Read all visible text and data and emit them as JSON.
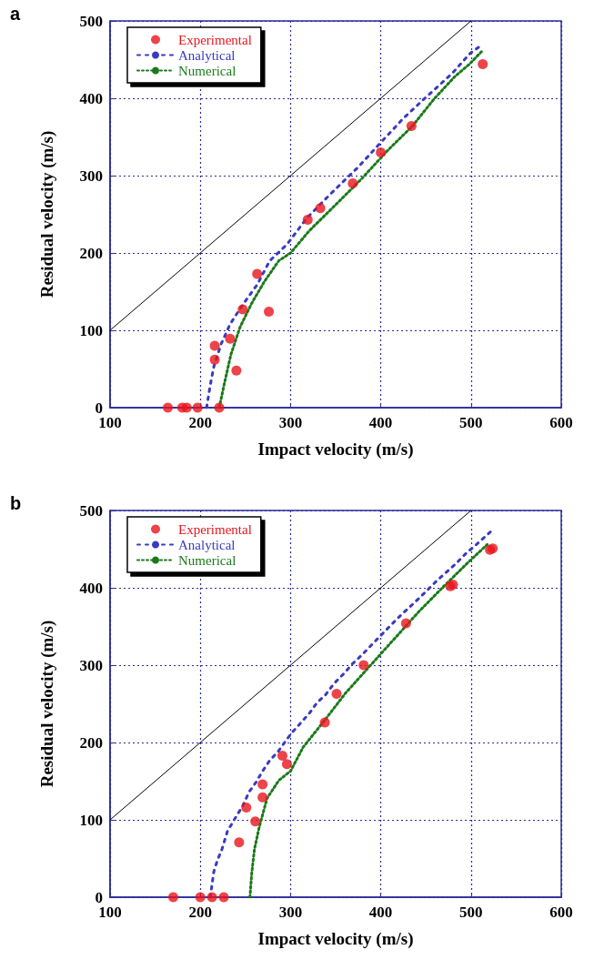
{
  "chart_data": [
    {
      "type": "scatter",
      "title": "a",
      "xlabel": "Impact velocity (m/s)",
      "ylabel": "Residual velocity (m/s)",
      "xlim": [
        100,
        600
      ],
      "ylim": [
        0,
        500
      ],
      "xticks": [
        100,
        200,
        300,
        400,
        500,
        600
      ],
      "yticks": [
        0,
        100,
        200,
        300,
        400,
        500
      ],
      "grid": true,
      "legend": "top left",
      "series": [
        {
          "name": "Experimental",
          "marker": "circle",
          "color": "#e8141c",
          "x": [
            164,
            180,
            185,
            197,
            221,
            216,
            216,
            233,
            240,
            247,
            263,
            276,
            319,
            333,
            369,
            400,
            434,
            513
          ],
          "values": [
            0,
            0,
            0,
            0,
            0,
            80,
            62,
            89,
            48,
            127,
            173,
            124,
            243,
            258,
            290,
            330,
            364,
            444
          ]
        },
        {
          "name": "Analytical",
          "type": "line",
          "marker": "none",
          "line_style": "dashed",
          "color": "#3a3ac0",
          "x": [
            207,
            211,
            215,
            223,
            233,
            247,
            263,
            277,
            296,
            318,
            344,
            375,
            397,
            425,
            447,
            479,
            499,
            512
          ],
          "values": [
            0,
            29,
            53,
            82,
            108,
            133,
            159,
            190,
            211,
            245,
            276,
            311,
            339,
            374,
            398,
            432,
            458,
            469
          ]
        },
        {
          "name": "Numerical",
          "type": "line",
          "marker": "none",
          "line_style": "dotted",
          "color": "#1a7a1a",
          "x": [
            221,
            227,
            234,
            244,
            257,
            271,
            287,
            300,
            321,
            348,
            378,
            408,
            435,
            459,
            482,
            499,
            513
          ],
          "values": [
            0,
            33,
            69,
            104,
            135,
            163,
            190,
            200,
            229,
            260,
            295,
            333,
            364,
            399,
            428,
            445,
            462
          ]
        },
        {
          "type": "line",
          "marker": "none",
          "line_style": "solid",
          "color": "#000000",
          "x": [
            100,
            500
          ],
          "values": [
            100,
            500
          ]
        }
      ]
    },
    {
      "type": "scatter",
      "title": "b",
      "xlabel": "Impact velocity (m/s)",
      "ylabel": "Residual velocity (m/s)",
      "xlim": [
        100,
        600
      ],
      "ylim": [
        0,
        500
      ],
      "xticks": [
        100,
        200,
        300,
        400,
        500,
        600
      ],
      "yticks": [
        0,
        100,
        200,
        300,
        400,
        500
      ],
      "grid": true,
      "legend": "top left",
      "series": [
        {
          "name": "Experimental",
          "marker": "circle",
          "color": "#e8141c",
          "x": [
            170,
            200,
            213,
            226,
            243,
            261,
            251,
            269,
            269,
            291,
            296,
            338,
            351,
            381,
            428,
            477,
            480,
            521,
            524
          ],
          "values": [
            0,
            0,
            0,
            0,
            71,
            98,
            116,
            129,
            146,
            183,
            172,
            226,
            263,
            300,
            354,
            402,
            404,
            449,
            451
          ]
        },
        {
          "name": "Analytical",
          "type": "line",
          "marker": "none",
          "line_style": "dashed",
          "color": "#3a3ac0",
          "x": [
            211,
            215,
            219,
            224,
            230,
            237,
            247,
            254,
            262,
            269,
            277,
            286,
            294,
            301,
            311,
            321,
            329,
            339,
            348,
            359,
            368,
            378,
            398,
            419,
            442,
            462,
            483,
            494,
            506,
            523
          ],
          "values": [
            0,
            33,
            48,
            62,
            85,
            99,
            118,
            136,
            149,
            163,
            177,
            188,
            201,
            212,
            225,
            238,
            251,
            262,
            276,
            289,
            301,
            312,
            336,
            361,
            386,
            409,
            431,
            444,
            456,
            474
          ]
        },
        {
          "name": "Numerical",
          "type": "line",
          "marker": "none",
          "line_style": "dotted",
          "color": "#1a7a1a",
          "x": [
            255,
            257,
            260,
            265,
            274,
            287,
            300,
            314,
            338,
            361,
            388,
            415,
            442,
            469,
            496,
            518
          ],
          "values": [
            0,
            31,
            62,
            89,
            128,
            151,
            163,
            194,
            229,
            264,
            299,
            334,
            369,
            401,
            432,
            456
          ]
        },
        {
          "type": "line",
          "marker": "none",
          "line_style": "solid",
          "color": "#000000",
          "x": [
            100,
            500
          ],
          "values": [
            100,
            500
          ]
        }
      ]
    }
  ]
}
